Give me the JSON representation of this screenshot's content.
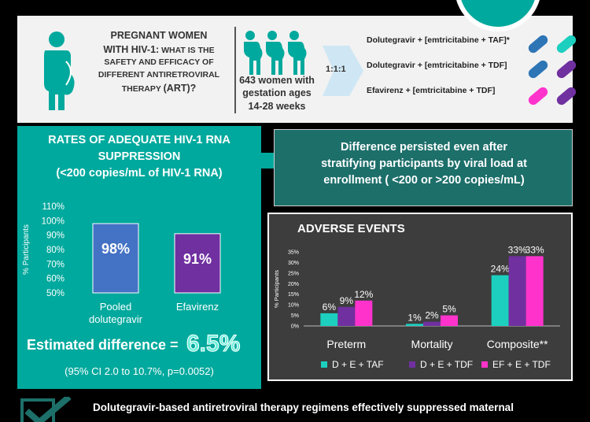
{
  "question": {
    "line1": "PREGNANT WOMEN",
    "line2": "WITH HIV-1:",
    "line2_small": " WHAT IS THE",
    "line3": "SAFETY AND EFFICACY OF",
    "line4": "DIFFERENT ANTIRETROVIRAL",
    "line5_small": "THERAPY ",
    "line5": "(ART)?"
  },
  "population": {
    "line1": "643 women with",
    "line2": "gestation ages",
    "line3": "14-28 weeks"
  },
  "ratio": "1:1:1",
  "arms": [
    "Dolutegravir + [emtricitabine + TAF]*",
    "Dolutegravir + [emtricitabine + TDF]",
    "Efavirenz + [emtricitabine + TDF]"
  ],
  "suppression": {
    "title_line1": "RATES OF ADEQUATE HIV-1 RNA",
    "title_line2": "SUPPRESSION",
    "title_line3": "(<200 copies/mL of HIV-1 RNA)",
    "estimated_label": "Estimated difference =",
    "estimated_value": "6.5%",
    "ci": "(95% CI 2.0 to 10.7%, p=0.0052)"
  },
  "difference_text": {
    "line1": "Difference persisted even after",
    "line2": "stratifying participants by viral load at",
    "line3": "enrollment ( <200 or >200 copies/mL)"
  },
  "adverse_title": "ADVERSE EVENTS",
  "bottom_text": "Dolutegravir-based antiretroviral therapy regimens effectively suppressed maternal",
  "colors": {
    "teal": "#00a99d",
    "dark_teal": "#1d6f6a",
    "bar_blue": "#4472c4",
    "bar_purple": "#7030a0",
    "ae_teal": "#1ccfbf",
    "ae_purple": "#7030a0",
    "ae_pink": "#ff33cc"
  },
  "chart_data": [
    {
      "type": "bar",
      "categories": [
        "Pooled dolutegravir",
        "Efavirenz"
      ],
      "values": [
        98,
        91
      ],
      "data_labels": [
        "98%",
        "91%"
      ],
      "ylabel": "% Participants",
      "ylim": [
        50,
        110
      ],
      "yticks": [
        "50%",
        "60%",
        "70%",
        "80%",
        "90%",
        "100%",
        "110%"
      ]
    },
    {
      "type": "bar",
      "categories": [
        "Preterm",
        "Mortality",
        "Composite**"
      ],
      "series": [
        {
          "name": "D + E + TAF",
          "values": [
            6,
            1,
            24
          ],
          "labels": [
            "6%",
            "1%",
            "24%"
          ]
        },
        {
          "name": "D + E + TDF",
          "values": [
            9,
            2,
            33
          ],
          "labels": [
            "9%",
            "2%",
            "33%"
          ]
        },
        {
          "name": "EF + E + TDF",
          "values": [
            12,
            5,
            33
          ],
          "labels": [
            "12%",
            "5%",
            "33%"
          ]
        }
      ],
      "ylabel": "% Participants",
      "ylim": [
        0,
        35
      ],
      "yticks": [
        "0%",
        "5%",
        "10%",
        "15%",
        "20%",
        "25%",
        "30%",
        "35%"
      ],
      "legend": "bottom"
    }
  ]
}
